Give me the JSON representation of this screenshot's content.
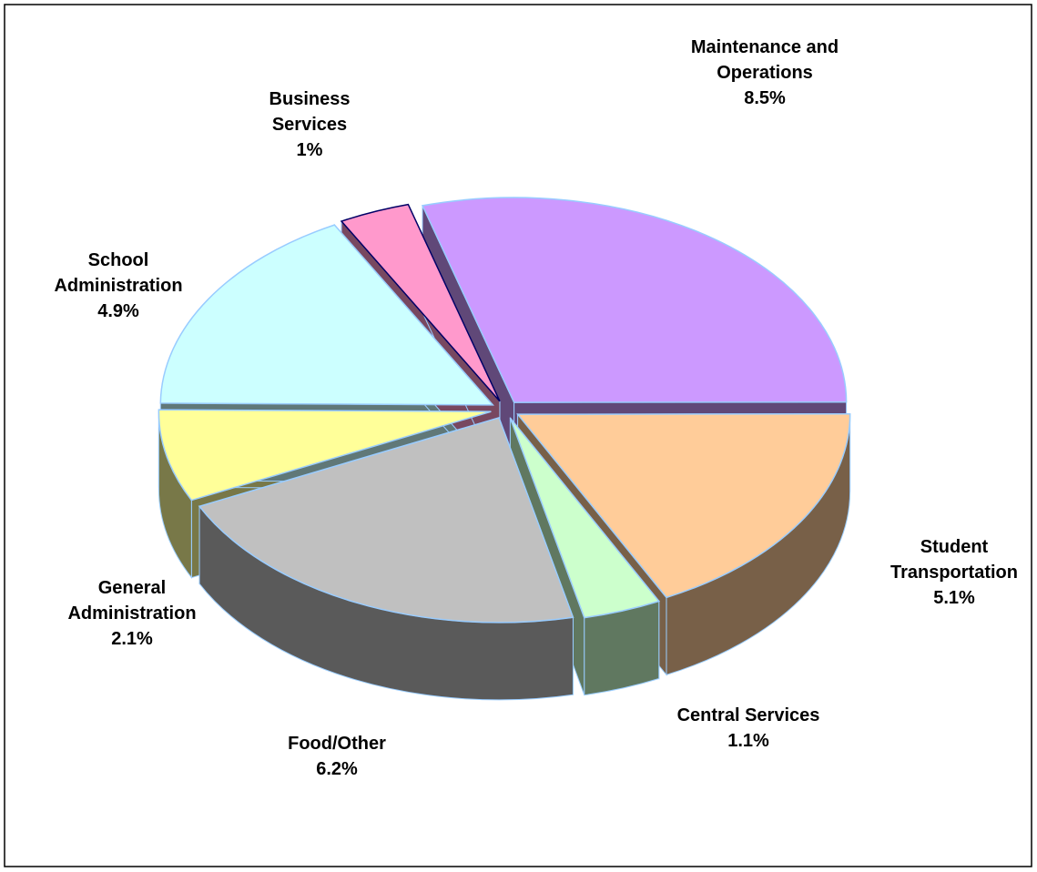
{
  "chart_data": {
    "type": "pie",
    "categories": [
      "Maintenance and Operations",
      "Student Transportation",
      "Central Services",
      "Food/Other",
      "General Administration",
      "School Administration",
      "Business Services"
    ],
    "values": [
      8.5,
      5.1,
      1.1,
      6.2,
      2.1,
      4.9,
      1
    ],
    "value_labels": [
      "8.5%",
      "5.1%",
      "1.1%",
      "6.2%",
      "2.1%",
      "4.9%",
      "1%"
    ],
    "colors": [
      "#cc99ff",
      "#ffcc99",
      "#ccffcc",
      "#c0c0c0",
      "#ffff99",
      "#ccffff",
      "#ff99cc"
    ]
  }
}
